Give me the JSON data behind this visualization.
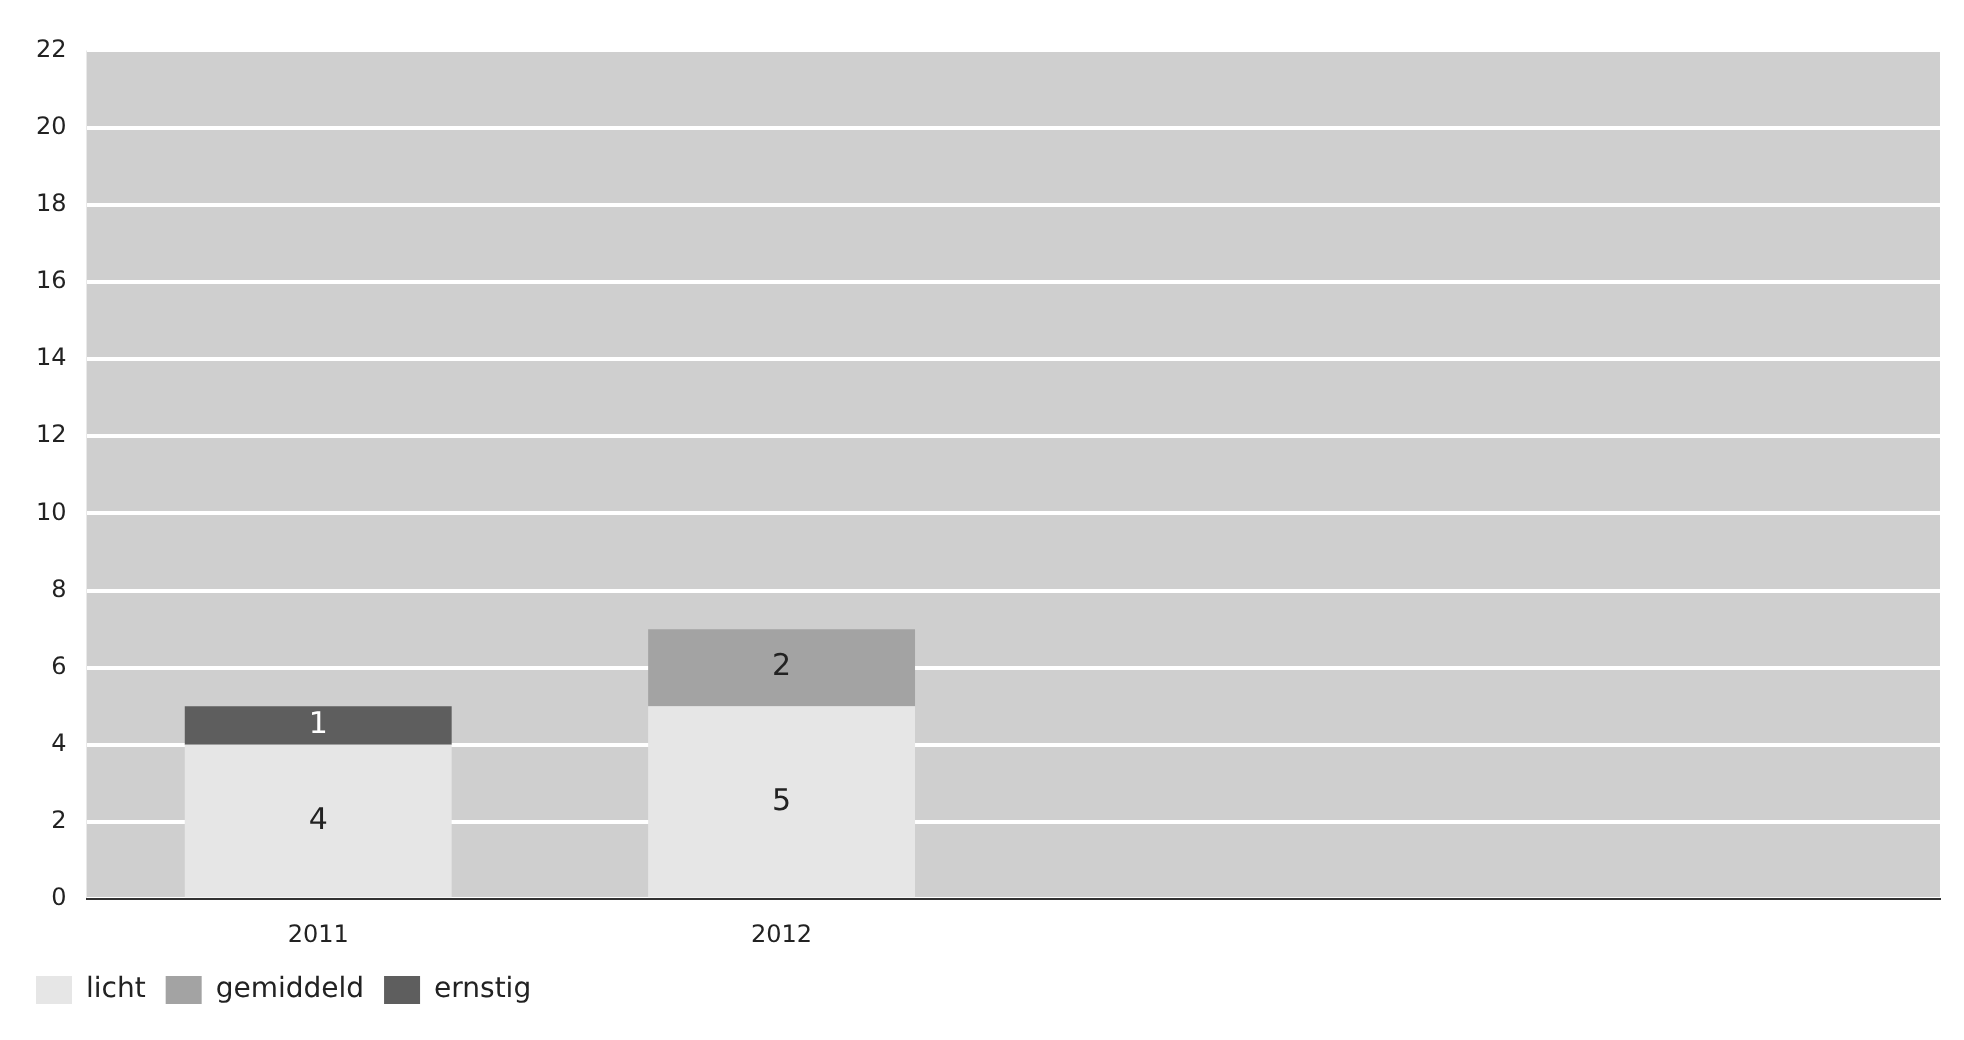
{
  "chart_data": {
    "type": "bar",
    "stacked": true,
    "categories": [
      "2011",
      "2012",
      null,
      null
    ],
    "series": [
      {
        "name": "licht",
        "color": "#e6e6e6",
        "values": [
          4,
          5,
          null,
          null
        ],
        "value_labels": [
          "4",
          "5",
          null,
          null
        ]
      },
      {
        "name": "gemiddeld",
        "color": "#a3a3a3",
        "values": [
          null,
          2,
          null,
          null
        ],
        "value_labels": [
          null,
          "2",
          null,
          null
        ]
      },
      {
        "name": "ernstig",
        "color": "#5e5e5e",
        "values": [
          1,
          null,
          null,
          null
        ],
        "value_labels": [
          "1",
          null,
          null,
          null
        ]
      }
    ],
    "ylim": [
      0,
      22
    ],
    "yticks": [
      0,
      2,
      4,
      6,
      8,
      10,
      12,
      14,
      16,
      18,
      20,
      22
    ],
    "grid": "y",
    "legend": "bottom left"
  }
}
